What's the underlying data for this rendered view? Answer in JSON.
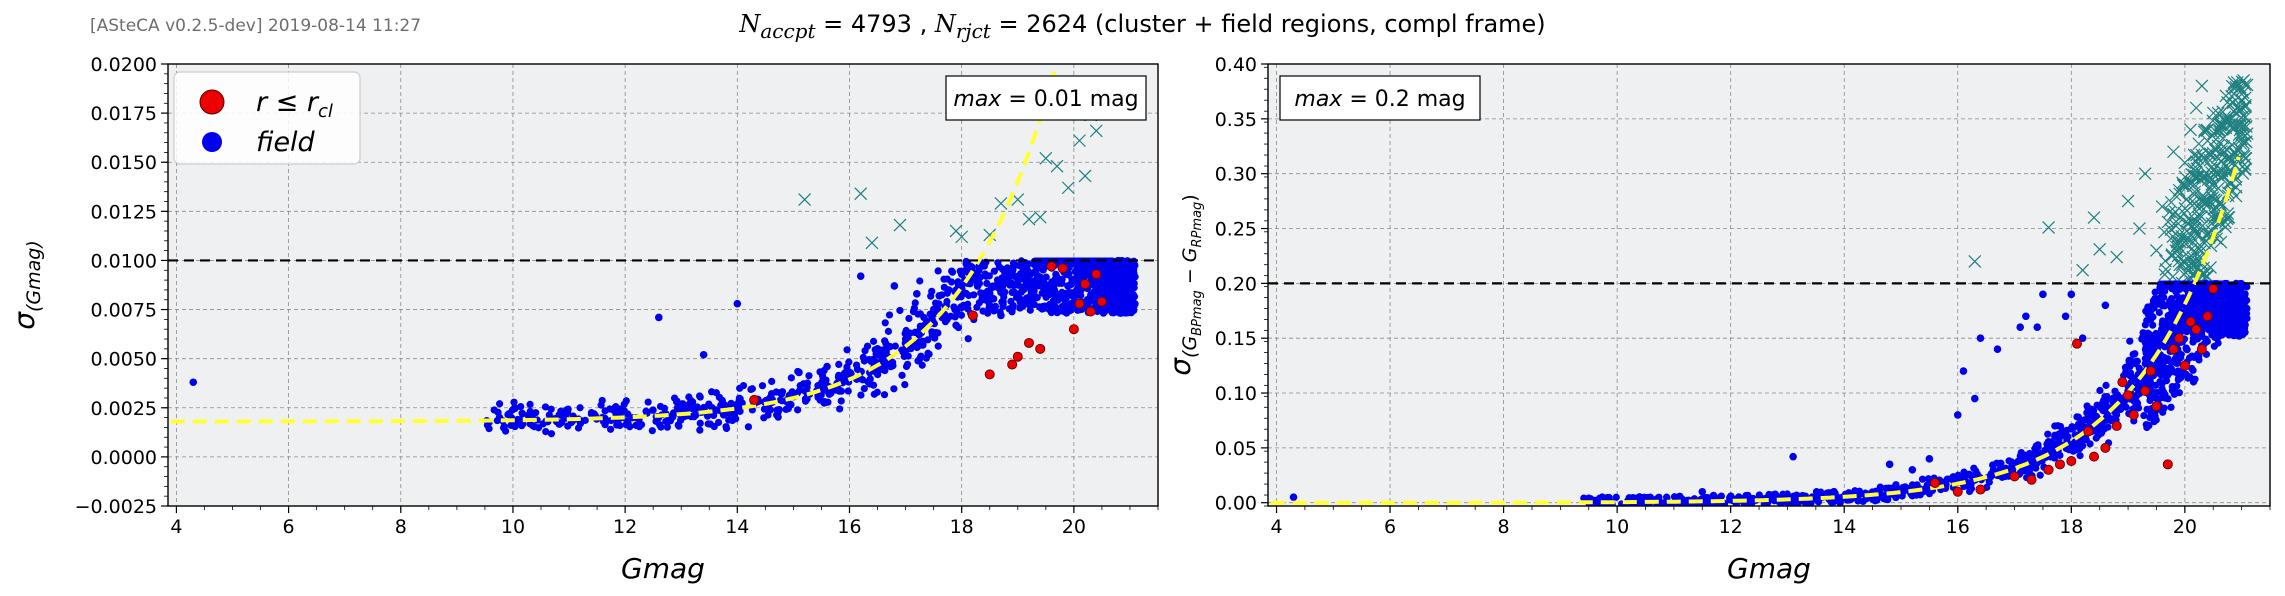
{
  "meta_label": "[ASteCA v0.2.5-dev] 2019-08-14 11:27",
  "title": {
    "n_accpt_label": "N",
    "n_accpt_sub": "accpt",
    "n_accpt_value": "4793",
    "n_rjct_label": "N",
    "n_rjct_sub": "rjct",
    "n_rjct_value": "2624",
    "rest": "(cluster + field regions, compl frame)"
  },
  "colors": {
    "panel_bg": "#eff0f2",
    "grid": "#8a8a8a",
    "rejected": "#1f8080",
    "field": "#0000ee",
    "members": "#ee0000",
    "fit_line": "#ffff33",
    "threshold": "#000000"
  },
  "chart_data": [
    {
      "type": "scatter",
      "xlabel": "Gmag",
      "ylabel": "σ(Gmag)",
      "ylabel_main": "σ",
      "ylabel_sub": "(Gmag)",
      "xlim": [
        3.85,
        21.5
      ],
      "ylim": [
        -0.0025,
        0.02
      ],
      "xticks": [
        4,
        6,
        8,
        10,
        12,
        14,
        16,
        18,
        20
      ],
      "yticks": [
        -0.0025,
        0.0,
        0.0025,
        0.005,
        0.0075,
        0.01,
        0.0125,
        0.015,
        0.0175,
        0.02
      ],
      "ytick_labels": [
        "−0.0025",
        "0.0000",
        "0.0025",
        "0.0050",
        "0.0075",
        "0.0100",
        "0.0125",
        "0.0150",
        "0.0175",
        "0.0200"
      ],
      "threshold": 0.01,
      "annotation": {
        "text_italic": "max",
        "text": " = 0.01 mag",
        "position": "top-right"
      },
      "legend": {
        "position": "top-left",
        "entries": [
          {
            "label": "r ≤ r",
            "sub": "cl",
            "color": "#ee0000"
          },
          {
            "label": "field",
            "color": "#0000ee"
          }
        ]
      },
      "fit_curve": {
        "a": 0.0018,
        "b": 2e-07,
        "c": 0.58
      },
      "field_outliers": [
        [
          4.3,
          0.0038
        ],
        [
          12.6,
          0.0071
        ],
        [
          14.0,
          0.0078
        ],
        [
          13.4,
          0.0052
        ],
        [
          14.3,
          0.0027
        ],
        [
          15.1,
          0.0043
        ],
        [
          15.6,
          0.0046
        ],
        [
          16.2,
          0.0092
        ],
        [
          16.8,
          0.0087
        ],
        [
          17.2,
          0.0083
        ],
        [
          17.6,
          0.0082
        ],
        [
          18.0,
          0.0093
        ],
        [
          18.5,
          0.0083
        ],
        [
          18.7,
          0.0072
        ],
        [
          15.8,
          0.0038
        ],
        [
          16.5,
          0.0055
        ],
        [
          17.9,
          0.0067
        ]
      ],
      "members": [
        [
          14.3,
          0.0029
        ],
        [
          18.2,
          0.0072
        ],
        [
          18.5,
          0.0042
        ],
        [
          18.9,
          0.0047
        ],
        [
          19.2,
          0.0058
        ],
        [
          19.4,
          0.0055
        ],
        [
          19.6,
          0.0097
        ],
        [
          19.8,
          0.0096
        ],
        [
          20.0,
          0.0065
        ],
        [
          20.1,
          0.0078
        ],
        [
          20.2,
          0.0088
        ],
        [
          20.3,
          0.0074
        ],
        [
          20.4,
          0.0093
        ],
        [
          19.0,
          0.0051
        ],
        [
          20.5,
          0.0079
        ]
      ],
      "rejected": [
        [
          15.2,
          0.0131
        ],
        [
          16.2,
          0.0134
        ],
        [
          16.9,
          0.0118
        ],
        [
          16.4,
          0.0109
        ],
        [
          17.9,
          0.0115
        ],
        [
          18.0,
          0.0112
        ],
        [
          18.5,
          0.0113
        ],
        [
          18.7,
          0.0129
        ],
        [
          19.0,
          0.0131
        ],
        [
          19.2,
          0.0121
        ],
        [
          19.4,
          0.0122
        ],
        [
          19.5,
          0.0152
        ],
        [
          19.7,
          0.0148
        ],
        [
          19.9,
          0.0137
        ],
        [
          20.1,
          0.0161
        ],
        [
          20.2,
          0.0143
        ],
        [
          20.3,
          0.0174
        ],
        [
          20.4,
          0.0166
        ]
      ],
      "scatter_seed": 7
    },
    {
      "type": "scatter",
      "xlabel": "Gmag",
      "ylabel": "σ(G_BPmag − G_RPmag)",
      "ylabel_main": "σ",
      "ylabel_sub": "(G",
      "ylabel_sub2": "BPmag",
      "ylabel_mid": " − G",
      "ylabel_sub3": "RPmag",
      "ylabel_end": ")",
      "xlim": [
        3.85,
        21.5
      ],
      "ylim": [
        -0.003,
        0.4
      ],
      "xticks": [
        4,
        6,
        8,
        10,
        12,
        14,
        16,
        18,
        20
      ],
      "yticks": [
        0.0,
        0.05,
        0.1,
        0.15,
        0.2,
        0.25,
        0.3,
        0.35,
        0.4
      ],
      "ytick_labels": [
        "0.00",
        "0.05",
        "0.10",
        "0.15",
        "0.20",
        "0.25",
        "0.30",
        "0.35",
        "0.40"
      ],
      "threshold": 0.2,
      "annotation": {
        "text_italic": "max",
        "text": " = 0.2 mag",
        "position": "top-left"
      },
      "fit_curve": {
        "a": 0.0,
        "b": 1.5e-06,
        "c": 0.585
      },
      "field_outliers": [
        [
          4.3,
          0.005
        ],
        [
          9.5,
          0.004
        ],
        [
          9.6,
          0.002
        ],
        [
          11.5,
          0.01
        ],
        [
          13.1,
          0.042
        ],
        [
          16.0,
          0.08
        ],
        [
          16.3,
          0.095
        ],
        [
          16.1,
          0.12
        ],
        [
          16.4,
          0.15
        ],
        [
          16.7,
          0.14
        ],
        [
          17.1,
          0.16
        ],
        [
          17.2,
          0.17
        ],
        [
          17.4,
          0.16
        ],
        [
          17.5,
          0.19
        ],
        [
          17.9,
          0.17
        ],
        [
          18.0,
          0.19
        ],
        [
          18.2,
          0.15
        ],
        [
          18.6,
          0.18
        ],
        [
          15.5,
          0.04
        ],
        [
          15.2,
          0.03
        ],
        [
          14.8,
          0.035
        ]
      ],
      "members": [
        [
          15.6,
          0.018
        ],
        [
          16.0,
          0.01
        ],
        [
          16.4,
          0.012
        ],
        [
          17.0,
          0.024
        ],
        [
          17.3,
          0.021
        ],
        [
          17.8,
          0.035
        ],
        [
          18.0,
          0.038
        ],
        [
          18.1,
          0.145
        ],
        [
          18.3,
          0.065
        ],
        [
          18.4,
          0.042
        ],
        [
          18.6,
          0.05
        ],
        [
          18.8,
          0.07
        ],
        [
          19.0,
          0.098
        ],
        [
          19.1,
          0.08
        ],
        [
          19.3,
          0.102
        ],
        [
          19.4,
          0.12
        ],
        [
          19.5,
          0.088
        ],
        [
          19.7,
          0.035
        ],
        [
          19.8,
          0.14
        ],
        [
          19.9,
          0.15
        ],
        [
          20.0,
          0.125
        ],
        [
          20.1,
          0.165
        ],
        [
          20.2,
          0.158
        ],
        [
          20.3,
          0.14
        ],
        [
          20.4,
          0.17
        ],
        [
          20.5,
          0.195
        ],
        [
          18.9,
          0.11
        ],
        [
          17.6,
          0.03
        ]
      ],
      "rejected": [
        [
          16.3,
          0.22
        ],
        [
          17.6,
          0.251
        ],
        [
          18.2,
          0.212
        ],
        [
          18.5,
          0.231
        ],
        [
          18.8,
          0.224
        ],
        [
          19.0,
          0.275
        ],
        [
          19.2,
          0.25
        ],
        [
          19.3,
          0.3
        ],
        [
          19.6,
          0.27
        ],
        [
          19.8,
          0.32
        ],
        [
          19.9,
          0.285
        ],
        [
          20.0,
          0.31
        ],
        [
          20.1,
          0.34
        ],
        [
          20.2,
          0.36
        ],
        [
          20.3,
          0.38
        ],
        [
          20.4,
          0.33
        ],
        [
          19.5,
          0.23
        ],
        [
          18.4,
          0.26
        ]
      ],
      "scatter_seed": 13
    }
  ]
}
